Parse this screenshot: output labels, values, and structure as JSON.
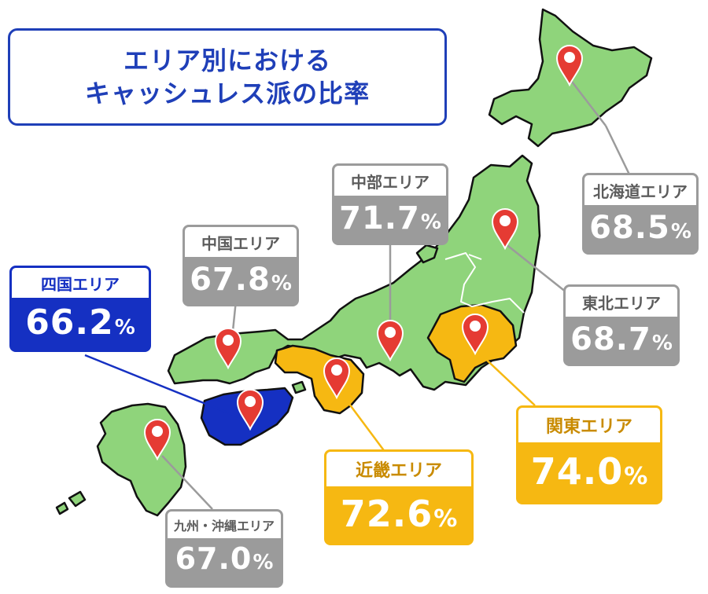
{
  "title": {
    "line1": "エリア別における",
    "line2": "キャッシュレス派の比率"
  },
  "colors": {
    "land": "#8fd47b",
    "land_outline": "#111111",
    "highlight_yellow": "#f6b812",
    "highlight_blue": "#1530c2",
    "card_gray": "#9b9b9b",
    "pin": "#e53b33",
    "title_blue": "#1f3fb8"
  },
  "regions": {
    "hokkaido": {
      "label": "北海道エリア",
      "value": "68.5",
      "unit": "%",
      "style": "gray"
    },
    "tohoku": {
      "label": "東北エリア",
      "value": "68.7",
      "unit": "%",
      "style": "gray"
    },
    "chubu": {
      "label": "中部エリア",
      "value": "71.7",
      "unit": "%",
      "style": "gray"
    },
    "kanto": {
      "label": "関東エリア",
      "value": "74.0",
      "unit": "%",
      "style": "yellow"
    },
    "kinki": {
      "label": "近畿エリア",
      "value": "72.6",
      "unit": "%",
      "style": "yellow"
    },
    "chugoku": {
      "label": "中国エリア",
      "value": "67.8",
      "unit": "%",
      "style": "gray"
    },
    "shikoku": {
      "label": "四国エリア",
      "value": "66.2",
      "unit": "%",
      "style": "blue"
    },
    "kyushu": {
      "label": "九州・沖縄エリア",
      "value": "67.0",
      "unit": "%",
      "style": "gray"
    }
  },
  "icons": {
    "pin": "map-pin-icon"
  }
}
